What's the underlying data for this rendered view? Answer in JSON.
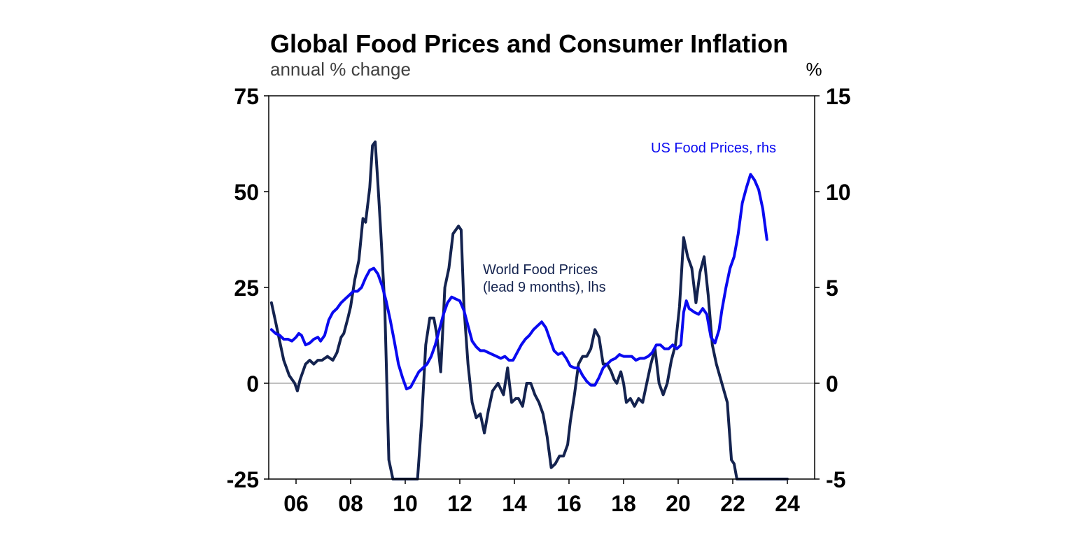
{
  "chart_data": {
    "type": "line",
    "title": "Global Food Prices and Consumer Inflation",
    "subtitle": "annual % change",
    "right_unit": "%",
    "xlim": [
      2005.0,
      2025.0
    ],
    "x_ticks": [
      2006,
      2008,
      2010,
      2012,
      2014,
      2016,
      2018,
      2020,
      2022,
      2024
    ],
    "x_tick_labels": [
      "06",
      "08",
      "10",
      "12",
      "14",
      "16",
      "18",
      "20",
      "22",
      "24"
    ],
    "y_left": {
      "min": -25,
      "max": 75,
      "ticks": [
        -25,
        0,
        25,
        50,
        75
      ]
    },
    "y_right": {
      "min": -5,
      "max": 15,
      "ticks": [
        -5,
        0,
        5,
        10,
        15
      ]
    },
    "zero_line": true,
    "colors": {
      "world": "#14234f",
      "us": "#0a0af0",
      "zero": "#808080",
      "frame": "#000000"
    },
    "series": [
      {
        "name": "World Food Prices (lead 9 months), lhs",
        "label_lines": [
          "World Food Prices",
          "(lead 9 months), lhs"
        ],
        "axis": "left",
        "color": "#14234f",
        "x": [
          2005.1,
          2005.25,
          2005.4,
          2005.55,
          2005.75,
          2005.95,
          2006.05,
          2006.15,
          2006.35,
          2006.5,
          2006.65,
          2006.8,
          2006.95,
          2007.15,
          2007.35,
          2007.5,
          2007.65,
          2007.75,
          2007.9,
          2008.0,
          2008.15,
          2008.3,
          2008.45,
          2008.55,
          2008.7,
          2008.8,
          2008.9,
          2009.0,
          2009.1,
          2009.25,
          2009.4,
          2009.55,
          2009.7,
          2009.8,
          2009.9,
          2010.0,
          2010.3,
          2010.45,
          2010.6,
          2010.75,
          2010.9,
          2011.05,
          2011.15,
          2011.3,
          2011.45,
          2011.6,
          2011.75,
          2011.95,
          2012.05,
          2012.15,
          2012.3,
          2012.45,
          2012.6,
          2012.75,
          2012.9,
          2013.05,
          2013.2,
          2013.4,
          2013.6,
          2013.75,
          2013.9,
          2014.05,
          2014.15,
          2014.3,
          2014.45,
          2014.6,
          2014.75,
          2014.9,
          2015.05,
          2015.2,
          2015.35,
          2015.5,
          2015.65,
          2015.8,
          2015.95,
          2016.05,
          2016.2,
          2016.35,
          2016.5,
          2016.65,
          2016.8,
          2016.95,
          2017.1,
          2017.25,
          2017.4,
          2017.55,
          2017.65,
          2017.75,
          2017.9,
          2018.0,
          2018.1,
          2018.25,
          2018.4,
          2018.55,
          2018.7,
          2018.85,
          2019.0,
          2019.15,
          2019.3,
          2019.45,
          2019.6,
          2019.75,
          2019.9,
          2020.05,
          2020.2,
          2020.35,
          2020.5,
          2020.65,
          2020.8,
          2020.95,
          2021.1,
          2021.25,
          2021.4,
          2021.6,
          2021.8,
          2021.95,
          2022.05,
          2022.15,
          2022.3,
          2022.45,
          2022.55,
          2022.7,
          2022.8,
          2022.9,
          2023.0,
          2023.1,
          2023.2,
          2023.35,
          2023.5,
          2023.65,
          2023.8,
          2023.95,
          2024.0
        ],
        "values": [
          21,
          16,
          11,
          6,
          2,
          0,
          -2,
          1,
          5,
          6,
          5,
          6,
          6,
          7,
          6,
          8,
          12,
          13,
          17,
          20,
          27,
          32,
          43,
          42,
          51,
          62,
          63,
          52,
          40,
          20,
          -20,
          -25,
          -25,
          -25,
          -25,
          -25,
          -25,
          -25,
          -10,
          10,
          17,
          17,
          13,
          3,
          25,
          30,
          39,
          41,
          40,
          20,
          5,
          -5,
          -9,
          -8,
          -13,
          -7,
          -2,
          0,
          -3,
          4,
          -5,
          -4,
          -4,
          -6,
          0,
          0,
          -3,
          -5,
          -8,
          -14,
          -22,
          -21,
          -19,
          -19,
          -16,
          -10,
          -3,
          5,
          7,
          7,
          9,
          14,
          12,
          5,
          5,
          3,
          1,
          0,
          3,
          0,
          -5,
          -4,
          -6,
          -4,
          -5,
          0,
          5,
          9,
          0,
          -3,
          0,
          6,
          10,
          20,
          38,
          33,
          30,
          21,
          29,
          33,
          23,
          10,
          5,
          0,
          -5,
          -20,
          -21,
          -25,
          -25,
          -25,
          -25,
          -25,
          -25,
          -25,
          -25,
          -25,
          -25,
          -25,
          -25,
          -25,
          -25,
          -25,
          -25
        ]
      },
      {
        "name": "US Food Prices, rhs",
        "axis": "right",
        "color": "#0a0af0",
        "x": [
          2005.1,
          2005.25,
          2005.4,
          2005.55,
          2005.7,
          2005.85,
          2006.0,
          2006.1,
          2006.2,
          2006.35,
          2006.5,
          2006.65,
          2006.8,
          2006.9,
          2007.05,
          2007.2,
          2007.35,
          2007.5,
          2007.65,
          2007.8,
          2007.95,
          2008.1,
          2008.25,
          2008.4,
          2008.55,
          2008.7,
          2008.85,
          2009.0,
          2009.15,
          2009.3,
          2009.45,
          2009.6,
          2009.75,
          2009.9,
          2010.05,
          2010.2,
          2010.35,
          2010.5,
          2010.65,
          2010.8,
          2010.95,
          2011.1,
          2011.25,
          2011.4,
          2011.55,
          2011.7,
          2011.85,
          2012.0,
          2012.15,
          2012.3,
          2012.45,
          2012.6,
          2012.75,
          2012.9,
          2013.05,
          2013.2,
          2013.35,
          2013.5,
          2013.65,
          2013.8,
          2013.95,
          2014.1,
          2014.25,
          2014.4,
          2014.55,
          2014.7,
          2014.85,
          2015.0,
          2015.15,
          2015.3,
          2015.45,
          2015.6,
          2015.75,
          2015.9,
          2016.05,
          2016.2,
          2016.35,
          2016.5,
          2016.65,
          2016.8,
          2016.95,
          2017.1,
          2017.25,
          2017.4,
          2017.55,
          2017.7,
          2017.85,
          2018.0,
          2018.15,
          2018.3,
          2018.45,
          2018.6,
          2018.75,
          2018.9,
          2019.05,
          2019.2,
          2019.35,
          2019.5,
          2019.65,
          2019.8,
          2019.95,
          2020.1,
          2020.2,
          2020.3,
          2020.4,
          2020.5,
          2020.6,
          2020.75,
          2020.9,
          2021.05,
          2021.2,
          2021.35,
          2021.5,
          2021.6,
          2021.75,
          2021.9,
          2022.05,
          2022.2,
          2022.35,
          2022.5,
          2022.65,
          2022.8,
          2022.95,
          2023.1,
          2023.25
        ],
        "values": [
          2.8,
          2.6,
          2.5,
          2.3,
          2.3,
          2.2,
          2.4,
          2.6,
          2.5,
          2.0,
          2.1,
          2.3,
          2.4,
          2.2,
          2.5,
          3.3,
          3.7,
          3.9,
          4.2,
          4.4,
          4.6,
          4.8,
          4.8,
          5.0,
          5.5,
          5.9,
          6.0,
          5.7,
          5.1,
          4.3,
          3.3,
          2.2,
          1.0,
          0.3,
          -0.3,
          -0.2,
          0.2,
          0.6,
          0.8,
          1.0,
          1.4,
          2.0,
          2.8,
          3.6,
          4.2,
          4.5,
          4.4,
          4.3,
          3.8,
          3.0,
          2.2,
          1.9,
          1.7,
          1.7,
          1.6,
          1.5,
          1.4,
          1.3,
          1.4,
          1.2,
          1.2,
          1.6,
          2.0,
          2.3,
          2.5,
          2.8,
          3.0,
          3.2,
          2.9,
          2.3,
          1.7,
          1.5,
          1.6,
          1.3,
          0.9,
          0.8,
          0.8,
          0.4,
          0.1,
          -0.1,
          -0.1,
          0.3,
          0.8,
          1.0,
          1.2,
          1.3,
          1.5,
          1.4,
          1.4,
          1.4,
          1.2,
          1.3,
          1.3,
          1.4,
          1.6,
          2.0,
          2.0,
          1.8,
          1.8,
          2.0,
          1.8,
          2.0,
          3.7,
          4.3,
          3.9,
          3.8,
          3.7,
          3.6,
          3.9,
          3.6,
          2.4,
          2.1,
          2.8,
          3.8,
          5.0,
          6.0,
          6.6,
          7.8,
          9.4,
          10.2,
          10.9,
          10.6,
          10.1,
          9.1,
          7.5
        ]
      }
    ]
  }
}
